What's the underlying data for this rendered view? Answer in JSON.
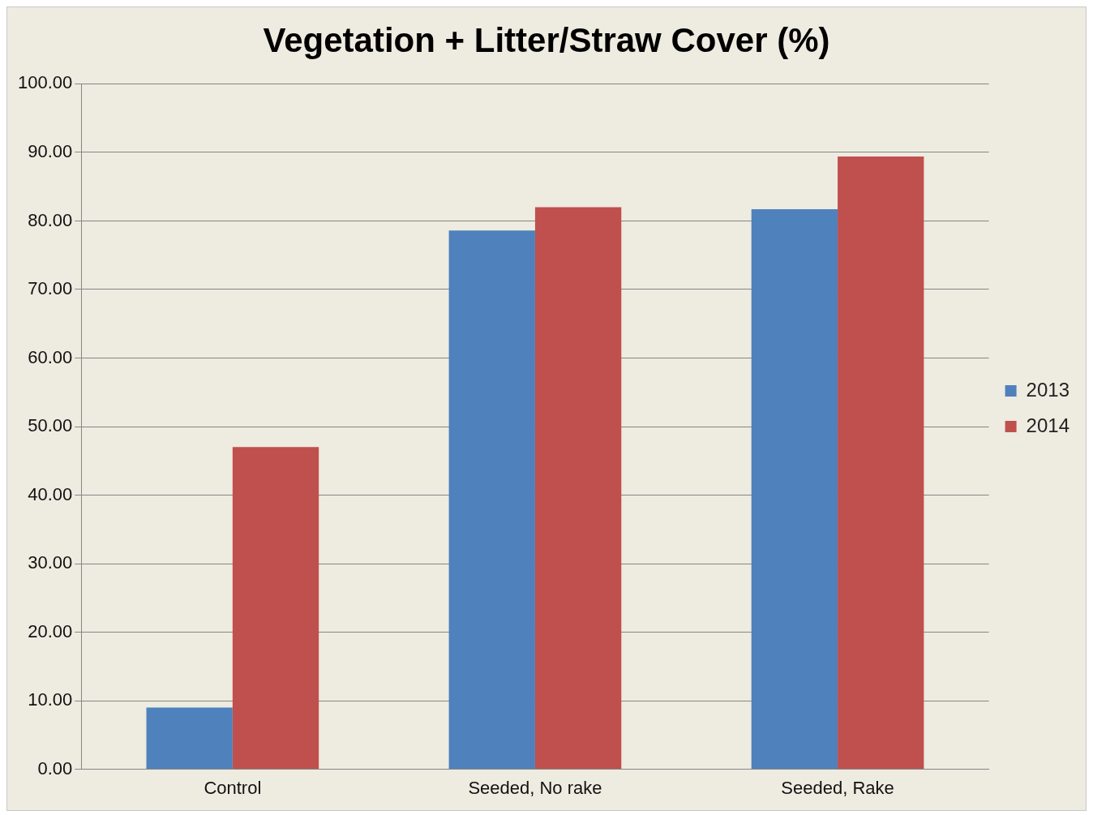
{
  "chart_data": {
    "type": "bar",
    "title": "Vegetation + Litter/Straw Cover (%)",
    "categories": [
      "Control",
      "Seeded, No rake",
      "Seeded, Rake"
    ],
    "series": [
      {
        "name": "2013",
        "color": "#4f81bd",
        "values": [
          9.0,
          78.6,
          81.7
        ]
      },
      {
        "name": "2014",
        "color": "#c0504d",
        "values": [
          47.0,
          82.0,
          89.4
        ]
      }
    ],
    "ylim": [
      0,
      100
    ],
    "yticks": [
      {
        "value": 0,
        "label": "0.00"
      },
      {
        "value": 10,
        "label": "10.00"
      },
      {
        "value": 20,
        "label": "20.00"
      },
      {
        "value": 30,
        "label": "30.00"
      },
      {
        "value": 40,
        "label": "40.00"
      },
      {
        "value": 50,
        "label": "50.00"
      },
      {
        "value": 60,
        "label": "60.00"
      },
      {
        "value": 70,
        "label": "70.00"
      },
      {
        "value": 80,
        "label": "80.00"
      },
      {
        "value": 90,
        "label": "90.00"
      },
      {
        "value": 100,
        "label": "100.00"
      }
    ],
    "grid": "y",
    "legend": "right"
  }
}
